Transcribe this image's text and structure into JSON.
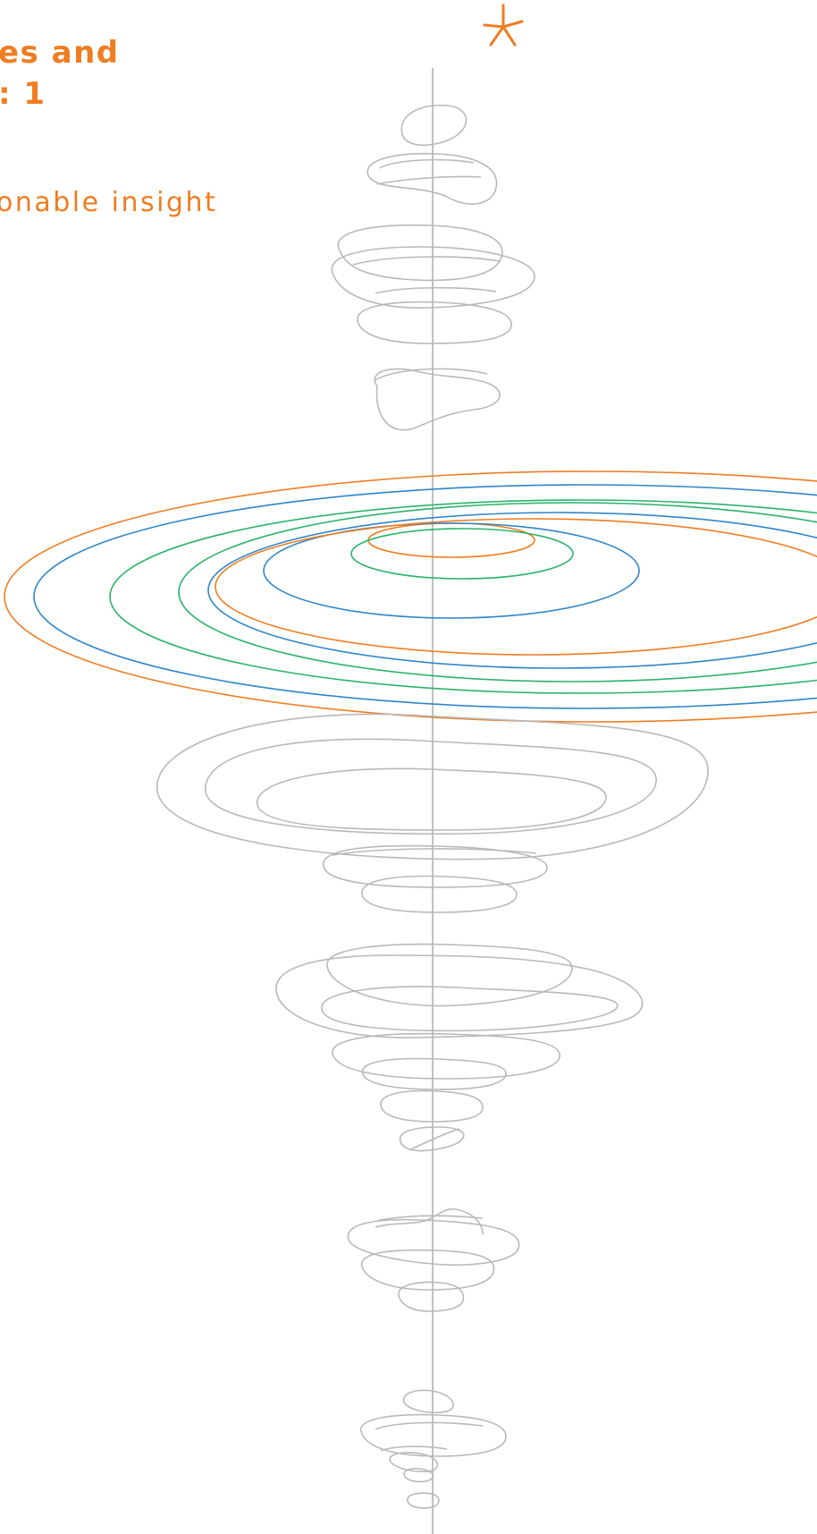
{
  "header": {
    "title_line_1": "es and",
    "title_line_2": ": 1",
    "subtitle": "onable insight"
  },
  "colors": {
    "accent_orange": "#ef7d22",
    "ring_blue": "#2f86c9",
    "ring_green": "#2bb36a",
    "sketch_gray": "#b9b9b9",
    "background": "#ffffff"
  },
  "icons": {
    "top_mark": "asterisk-icon"
  }
}
